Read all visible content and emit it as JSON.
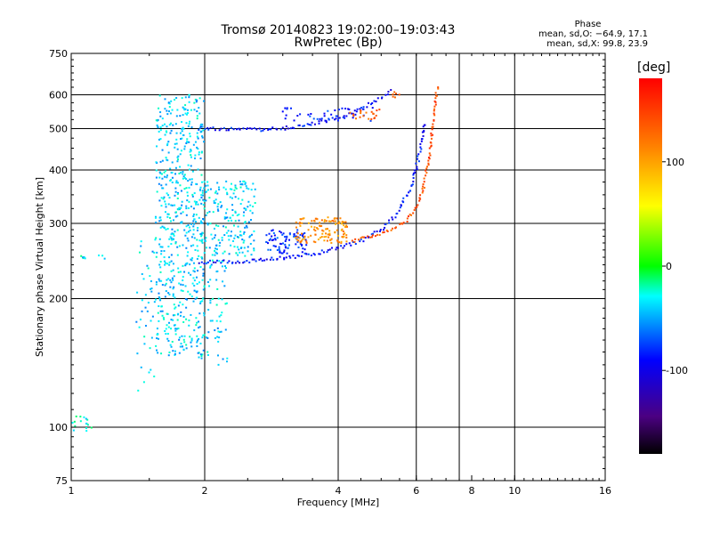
{
  "chart_data": {
    "type": "scatter",
    "title": "Tromsø 20140823 19:02:00–19:03:43",
    "subtitle": "RwPretec (Bp)",
    "xlabel": "Frequency [MHz]",
    "ylabel": "Stationary phase Virtual Height [km]",
    "x_scale": "log",
    "y_scale": "log",
    "xlim": [
      1,
      16
    ],
    "ylim": [
      75,
      750
    ],
    "x_ticks": [
      1,
      2,
      4,
      6,
      8,
      10,
      16
    ],
    "y_ticks": [
      75,
      100,
      200,
      300,
      400,
      500,
      600,
      750
    ],
    "x_grid": [
      2,
      4,
      6,
      7.5,
      10
    ],
    "y_grid": [
      100,
      200,
      300,
      400,
      500,
      600
    ],
    "grid": true,
    "phase_box": {
      "header": "Phase",
      "line_o": "mean, sd,O: −64.9, 17.1",
      "line_x": "mean, sd,X:  99.8, 23.9"
    },
    "colorbar": {
      "label": "[deg]",
      "min": -180,
      "max": 180,
      "ticks": [
        100,
        0,
        -100
      ],
      "colormap": "rainbow"
    },
    "series": [
      {
        "mode": "O",
        "traces": [
          {
            "kind": "curve",
            "phase": -90,
            "points": [
              [
                1.95,
                500
              ],
              [
                2.2,
                500
              ],
              [
                2.5,
                497
              ],
              [
                2.8,
                497
              ],
              [
                3.2,
                505
              ],
              [
                3.6,
                515
              ],
              [
                4.0,
                530
              ],
              [
                4.5,
                555
              ],
              [
                5.0,
                590
              ],
              [
                5.3,
                615
              ]
            ]
          },
          {
            "kind": "curve",
            "phase": -90,
            "points": [
              [
                1.95,
                243
              ],
              [
                2.3,
                244
              ],
              [
                2.7,
                246
              ],
              [
                3.0,
                249
              ],
              [
                3.4,
                253
              ],
              [
                3.8,
                259
              ],
              [
                4.2,
                266
              ],
              [
                4.6,
                276
              ],
              [
                5.0,
                290
              ],
              [
                5.4,
                315
              ],
              [
                5.8,
                360
              ],
              [
                6.05,
                420
              ],
              [
                6.2,
                475
              ],
              [
                6.3,
                520
              ]
            ]
          },
          {
            "kind": "cloud",
            "phase": -80,
            "x": [
              2.75,
              3.4
            ],
            "y": [
              255,
              290
            ],
            "count": 80
          },
          {
            "kind": "cloud",
            "phase": -85,
            "x": [
              3.0,
              4.8
            ],
            "y": [
              520,
              560
            ],
            "count": 40
          },
          {
            "kind": "cloud",
            "phase": -40,
            "x": [
              1.55,
              2.0
            ],
            "y": [
              145,
              600
            ],
            "count": 600
          },
          {
            "kind": "cloud",
            "phase": -40,
            "x": [
              1.95,
              2.6
            ],
            "y": [
              250,
              380
            ],
            "count": 200
          },
          {
            "kind": "cloud",
            "phase": -40,
            "x": [
              1.98,
              2.25
            ],
            "y": [
              140,
              260
            ],
            "count": 60
          },
          {
            "kind": "cloud",
            "phase": -40,
            "x": [
              1.4,
              1.55
            ],
            "y": [
              120,
              280
            ],
            "count": 40
          },
          {
            "kind": "cloud",
            "phase": -30,
            "x": [
              1.0,
              1.12
            ],
            "y": [
              98,
              106
            ],
            "count": 16
          },
          {
            "kind": "cloud",
            "phase": -30,
            "x": [
              1.05,
              1.2
            ],
            "y": [
              248,
              253
            ],
            "count": 8
          }
        ]
      },
      {
        "mode": "X",
        "traces": [
          {
            "kind": "curve",
            "phase": 140,
            "points": [
              [
                4.3,
                272
              ],
              [
                4.8,
                280
              ],
              [
                5.2,
                288
              ],
              [
                5.6,
                300
              ],
              [
                6.0,
                325
              ],
              [
                6.2,
                355
              ],
              [
                6.4,
                420
              ],
              [
                6.55,
                520
              ],
              [
                6.7,
                630
              ]
            ]
          },
          {
            "kind": "cloud",
            "phase": 110,
            "x": [
              3.2,
              4.2
            ],
            "y": [
              270,
              310
            ],
            "count": 120
          },
          {
            "kind": "cloud",
            "phase": 135,
            "x": [
              4.2,
              5.0
            ],
            "y": [
              525,
              555
            ],
            "count": 20
          },
          {
            "kind": "cloud",
            "phase": 140,
            "x": [
              5.3,
              5.5
            ],
            "y": [
              590,
              610
            ],
            "count": 6
          }
        ]
      }
    ]
  }
}
